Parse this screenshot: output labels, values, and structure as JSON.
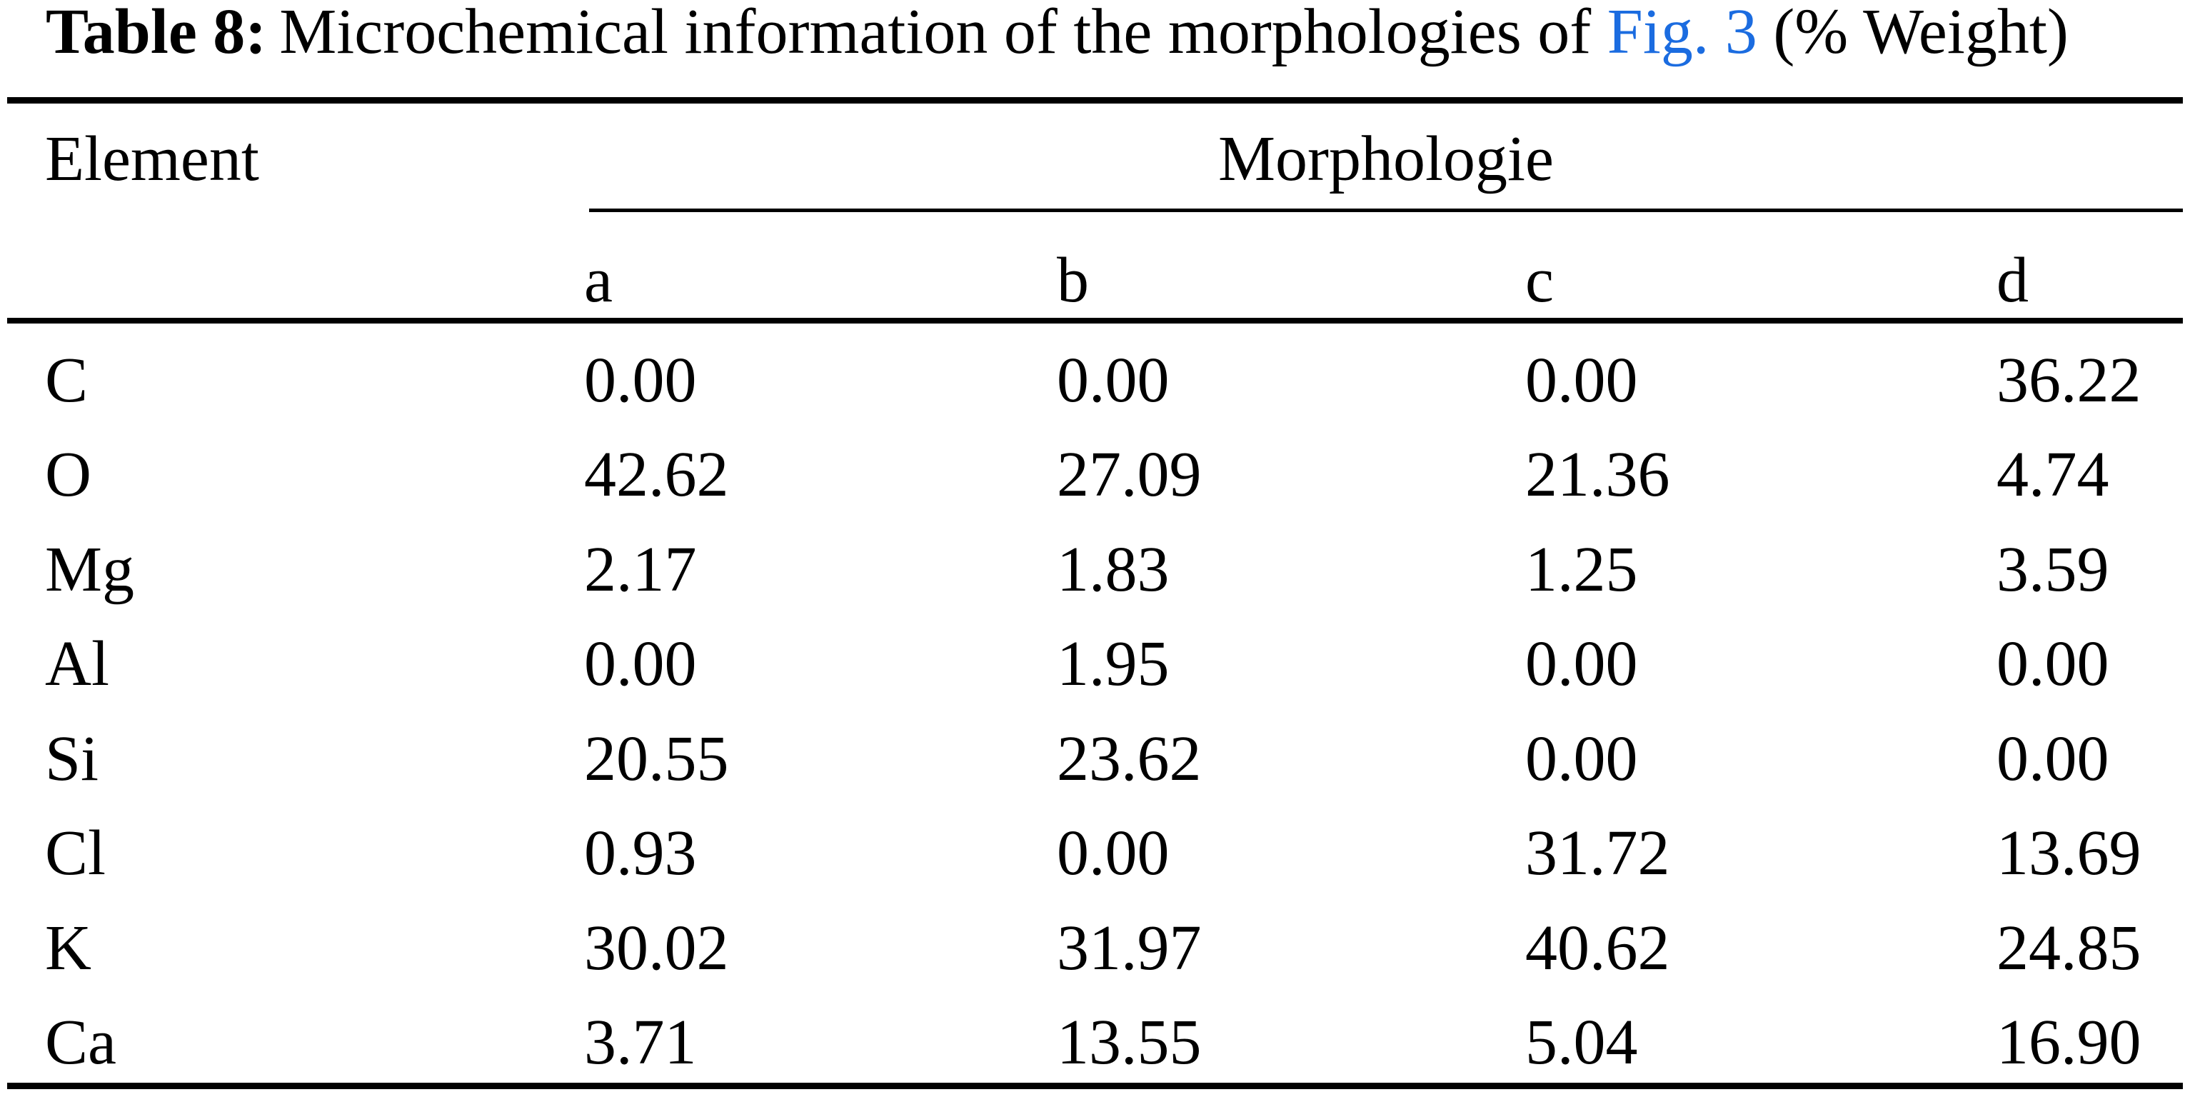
{
  "title": {
    "label": "Table 8:",
    "text_before_link": "Microchemical information of the morphologies of",
    "link": "Fig. 3",
    "text_after_link": "(% Weight)"
  },
  "colors": {
    "link_blue": "#1B6CE0",
    "text": "#000000",
    "background": "#FFFFFF"
  },
  "table": {
    "row_header": "Element",
    "group_header": "Morphologie",
    "columns": [
      "a",
      "b",
      "c",
      "d"
    ],
    "rows": [
      {
        "element": "C",
        "values": [
          "0.00",
          "0.00",
          "0.00",
          "36.22"
        ]
      },
      {
        "element": "O",
        "values": [
          "42.62",
          "27.09",
          "21.36",
          "4.74"
        ]
      },
      {
        "element": "Mg",
        "values": [
          "2.17",
          "1.83",
          "1.25",
          "3.59"
        ]
      },
      {
        "element": "Al",
        "values": [
          "0.00",
          "1.95",
          "0.00",
          "0.00"
        ]
      },
      {
        "element": "Si",
        "values": [
          "20.55",
          "23.62",
          "0.00",
          "0.00"
        ]
      },
      {
        "element": "Cl",
        "values": [
          "0.93",
          "0.00",
          "31.72",
          "13.69"
        ]
      },
      {
        "element": "K",
        "values": [
          "30.02",
          "31.97",
          "40.62",
          "24.85"
        ]
      },
      {
        "element": "Ca",
        "values": [
          "3.71",
          "13.55",
          "5.04",
          "16.90"
        ]
      }
    ]
  }
}
